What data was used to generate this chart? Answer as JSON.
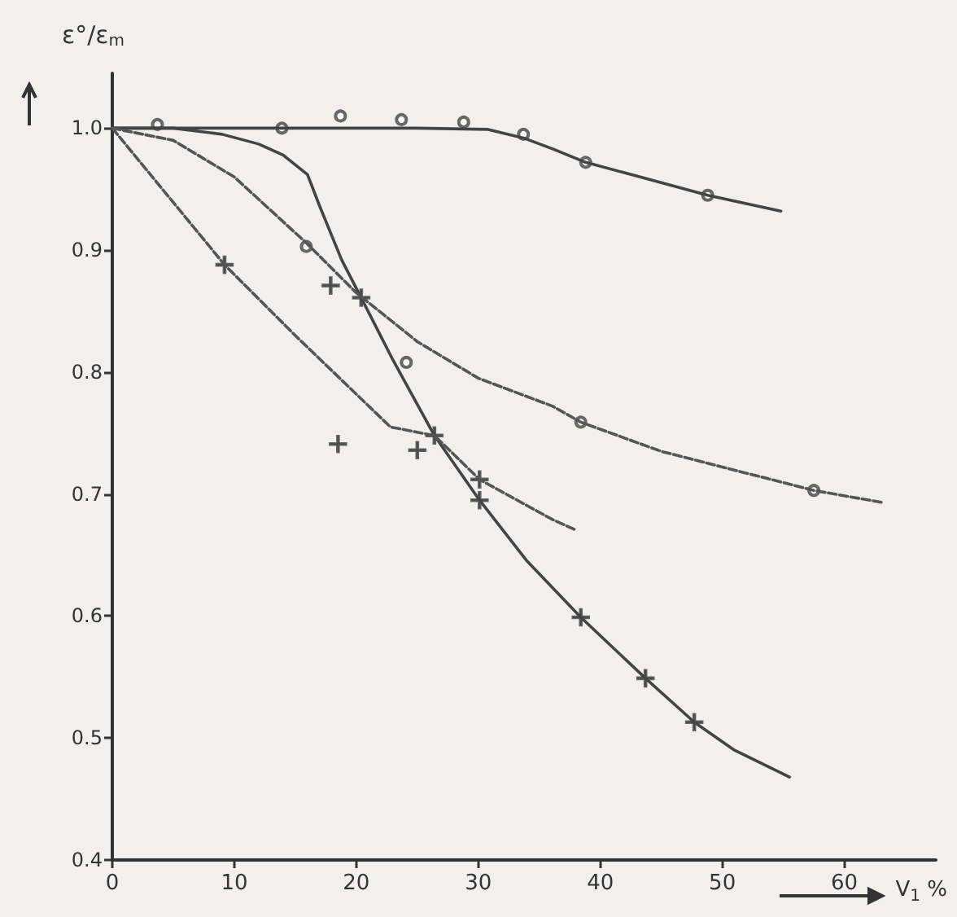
{
  "chart_data": {
    "type": "line",
    "xlabel": "V$_{1}$ %",
    "ylabel": "ε°/ε$_{m}$",
    "xlim": [
      0,
      67.5
    ],
    "ylim": [
      0.4,
      1.045
    ],
    "xticks": [
      0,
      10,
      20,
      30,
      40,
      50,
      60
    ],
    "yticks": [
      {
        "value": 0.4,
        "label": "0.4"
      },
      {
        "value": 0.5,
        "label": "0.5"
      },
      {
        "value": 0.6,
        "label": "0.6"
      },
      {
        "value": 0.7,
        "label": "0.7"
      },
      {
        "value": 0.8,
        "label": "0.8"
      },
      {
        "value": 0.9,
        "label": "0.9"
      },
      {
        "value": 1,
        "label": "1.0"
      }
    ],
    "grid": false,
    "series": [
      {
        "color": "#444444",
        "line_style": "solid",
        "marker": "none",
        "x": [
          0,
          10,
          20,
          25,
          30.8,
          33.7,
          36.1,
          38.8,
          44,
          48.8,
          54.8
        ],
        "values": [
          1,
          1,
          1,
          1,
          0.999,
          0.992,
          0.983,
          0.972,
          0.958,
          0.945,
          0.932
        ]
      },
      {
        "color": "#444444",
        "line_style": "solid",
        "marker": "none",
        "x": [
          0,
          5,
          9,
          12,
          14,
          16,
          17,
          18.8,
          20.4,
          23,
          26.4,
          30.1,
          34,
          38.4,
          43.7,
          47.7,
          51,
          55.5
        ],
        "values": [
          1,
          1,
          0.995,
          0.987,
          0.978,
          0.962,
          0.936,
          0.892,
          0.861,
          0.81,
          0.748,
          0.695,
          0.645,
          0.599,
          0.549,
          0.513,
          0.49,
          0.468
        ]
      },
      {
        "color": "#555555",
        "line_style": "dashed",
        "marker": "none",
        "x": [
          0,
          5,
          10,
          16,
          20,
          25,
          30,
          36.1,
          38.4,
          45,
          57.5,
          63.2
        ],
        "values": [
          1,
          0.99,
          0.96,
          0.905,
          0.865,
          0.825,
          0.795,
          0.772,
          0.759,
          0.735,
          0.703,
          0.693
        ]
      },
      {
        "color": "#555555",
        "line_style": "dashed",
        "marker": "none",
        "x": [
          0,
          9.2,
          15,
          22.8,
          26.4,
          30.1,
          36.1,
          37.9
        ],
        "values": [
          1,
          0.888,
          0.83,
          0.755,
          0.748,
          0.712,
          0.679,
          0.671
        ]
      },
      {
        "type": "scatter",
        "color": "#444444",
        "marker": "circle",
        "x": [
          3.7,
          13.9,
          18.7,
          23.7,
          28.8,
          33.7,
          38.8,
          48.8
        ],
        "values": [
          1.003,
          1,
          1.01,
          1.007,
          1.005,
          0.995,
          0.972,
          0.945
        ]
      },
      {
        "type": "scatter",
        "color": "#444444",
        "marker": "circle",
        "x": [
          15.9,
          24.1,
          38.4,
          57.5
        ],
        "values": [
          0.903,
          0.808,
          0.759,
          0.703
        ]
      },
      {
        "type": "scatter",
        "color": "#444444",
        "marker": "cross",
        "x": [
          9.2,
          17.9,
          18.5,
          20.4,
          25,
          26.4,
          30.1,
          30.1,
          38.4,
          43.7,
          47.7
        ],
        "values": [
          0.888,
          0.871,
          0.741,
          0.861,
          0.736,
          0.748,
          0.712,
          0.695,
          0.599,
          0.549,
          0.513
        ]
      }
    ]
  }
}
